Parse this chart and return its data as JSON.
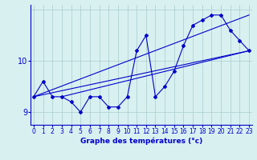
{
  "xlabel": "Graphe des températures (°c)",
  "hours": [
    0,
    1,
    2,
    3,
    4,
    5,
    6,
    7,
    8,
    9,
    10,
    11,
    12,
    13,
    14,
    15,
    16,
    17,
    18,
    19,
    20,
    21,
    22,
    23
  ],
  "actual": [
    9.3,
    9.6,
    9.3,
    9.3,
    9.2,
    9.0,
    9.3,
    9.3,
    9.1,
    9.1,
    9.3,
    10.2,
    10.5,
    9.3,
    9.5,
    9.8,
    10.3,
    10.7,
    10.8,
    10.9,
    10.9,
    10.6,
    10.4,
    10.2
  ],
  "line1_x": [
    0,
    23
  ],
  "line1_y": [
    9.3,
    10.2
  ],
  "line2_x": [
    0,
    23
  ],
  "line2_y": [
    9.3,
    10.9
  ],
  "line3_x": [
    3,
    23
  ],
  "line3_y": [
    9.3,
    10.2
  ],
  "line_color": "#0000cc",
  "bg_color": "#d8f0f0",
  "grid_color": "#aacccc",
  "ytick_vals": [
    9,
    10
  ],
  "ytick_labels": [
    "9",
    "10"
  ],
  "ylim": [
    8.75,
    11.1
  ],
  "xlim": [
    -0.3,
    23.3
  ],
  "xlabel_fontsize": 6.5,
  "tick_fontsize": 5.5,
  "ytick_fontsize": 7.0
}
